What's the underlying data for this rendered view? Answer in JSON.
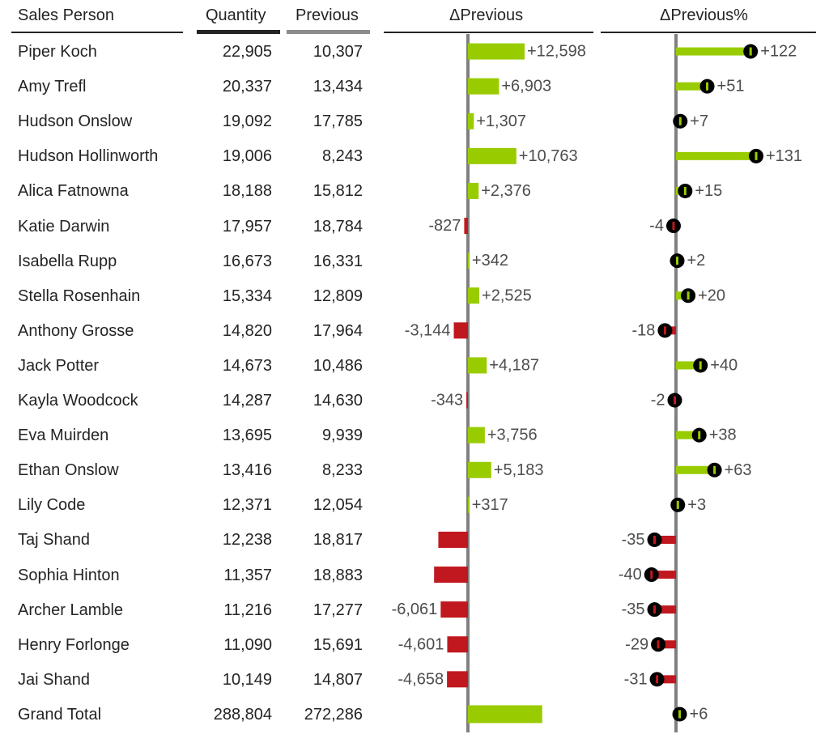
{
  "headers": {
    "sales_person": "Sales Person",
    "quantity": "Quantity",
    "previous": "Previous",
    "delta": "ΔPrevious",
    "delta_pct": "ΔPrevious%"
  },
  "rows": [
    {
      "name": "Piper Koch",
      "quantity": "22,905",
      "previous": "10,307",
      "delta_label": "+12,598",
      "pct_label": "+122"
    },
    {
      "name": "Amy Trefl",
      "quantity": "20,337",
      "previous": "13,434",
      "delta_label": "+6,903",
      "pct_label": "+51"
    },
    {
      "name": "Hudson Onslow",
      "quantity": "19,092",
      "previous": "17,785",
      "delta_label": "+1,307",
      "pct_label": "+7"
    },
    {
      "name": "Hudson Hollinworth",
      "quantity": "19,006",
      "previous": "8,243",
      "delta_label": "+10,763",
      "pct_label": "+131"
    },
    {
      "name": "Alica Fatnowna",
      "quantity": "18,188",
      "previous": "15,812",
      "delta_label": "+2,376",
      "pct_label": "+15"
    },
    {
      "name": "Katie Darwin",
      "quantity": "17,957",
      "previous": "18,784",
      "delta_label": "-827",
      "pct_label": "-4"
    },
    {
      "name": "Isabella Rupp",
      "quantity": "16,673",
      "previous": "16,331",
      "delta_label": "+342",
      "pct_label": "+2"
    },
    {
      "name": "Stella Rosenhain",
      "quantity": "15,334",
      "previous": "12,809",
      "delta_label": "+2,525",
      "pct_label": "+20"
    },
    {
      "name": "Anthony Grosse",
      "quantity": "14,820",
      "previous": "17,964",
      "delta_label": "-3,144",
      "pct_label": "-18"
    },
    {
      "name": "Jack Potter",
      "quantity": "14,673",
      "previous": "10,486",
      "delta_label": "+4,187",
      "pct_label": "+40"
    },
    {
      "name": "Kayla Woodcock",
      "quantity": "14,287",
      "previous": "14,630",
      "delta_label": "-343",
      "pct_label": "-2"
    },
    {
      "name": "Eva Muirden",
      "quantity": "13,695",
      "previous": "9,939",
      "delta_label": "+3,756",
      "pct_label": "+38"
    },
    {
      "name": "Ethan Onslow",
      "quantity": "13,416",
      "previous": "8,233",
      "delta_label": "+5,183",
      "pct_label": "+63"
    },
    {
      "name": "Lily Code",
      "quantity": "12,371",
      "previous": "12,054",
      "delta_label": "+317",
      "pct_label": "+3"
    },
    {
      "name": "Taj Shand",
      "quantity": "12,238",
      "previous": "18,817",
      "delta_label": "",
      "pct_label": "-35"
    },
    {
      "name": "Sophia Hinton",
      "quantity": "11,357",
      "previous": "18,883",
      "delta_label": "",
      "pct_label": "-40"
    },
    {
      "name": "Archer Lamble",
      "quantity": "11,216",
      "previous": "17,277",
      "delta_label": "-6,061",
      "pct_label": "-35"
    },
    {
      "name": "Henry Forlonge",
      "quantity": "11,090",
      "previous": "15,691",
      "delta_label": "-4,601",
      "pct_label": "-29"
    },
    {
      "name": "Jai Shand",
      "quantity": "10,149",
      "previous": "14,807",
      "delta_label": "-4,658",
      "pct_label": "-31"
    }
  ],
  "total": {
    "name": "Grand Total",
    "quantity": "288,804",
    "previous": "272,286",
    "delta_label": "",
    "pct_label": "+6"
  },
  "colors": {
    "positive": "#99cc00",
    "negative": "#c0181e",
    "axis": "#808080",
    "text": "#252423",
    "label": "#4d4d4d",
    "marker": "#000000"
  },
  "chart_data": [
    {
      "type": "bar",
      "title": "ΔPrevious",
      "categories": [
        "Piper Koch",
        "Amy Trefl",
        "Hudson Onslow",
        "Hudson Hollinworth",
        "Alica Fatnowna",
        "Katie Darwin",
        "Isabella Rupp",
        "Stella Rosenhain",
        "Anthony Grosse",
        "Jack Potter",
        "Kayla Woodcock",
        "Eva Muirden",
        "Ethan Onslow",
        "Lily Code",
        "Taj Shand",
        "Sophia Hinton",
        "Archer Lamble",
        "Henry Forlonge",
        "Jai Shand",
        "Grand Total"
      ],
      "values": [
        12598,
        6903,
        1307,
        10763,
        2376,
        -827,
        342,
        2525,
        -3144,
        4187,
        -343,
        3756,
        5183,
        317,
        -6579,
        -7526,
        -6061,
        -4601,
        -4658,
        16518
      ],
      "orientation": "horizontal"
    },
    {
      "type": "bar",
      "title": "ΔPrevious%",
      "categories": [
        "Piper Koch",
        "Amy Trefl",
        "Hudson Onslow",
        "Hudson Hollinworth",
        "Alica Fatnowna",
        "Katie Darwin",
        "Isabella Rupp",
        "Stella Rosenhain",
        "Anthony Grosse",
        "Jack Potter",
        "Kayla Woodcock",
        "Eva Muirden",
        "Ethan Onslow",
        "Lily Code",
        "Taj Shand",
        "Sophia Hinton",
        "Archer Lamble",
        "Henry Forlonge",
        "Jai Shand",
        "Grand Total"
      ],
      "values": [
        122,
        51,
        7,
        131,
        15,
        -4,
        2,
        20,
        -18,
        40,
        -2,
        38,
        63,
        3,
        -35,
        -40,
        -35,
        -29,
        -31,
        6
      ],
      "orientation": "horizontal",
      "style": "lollipop"
    }
  ]
}
